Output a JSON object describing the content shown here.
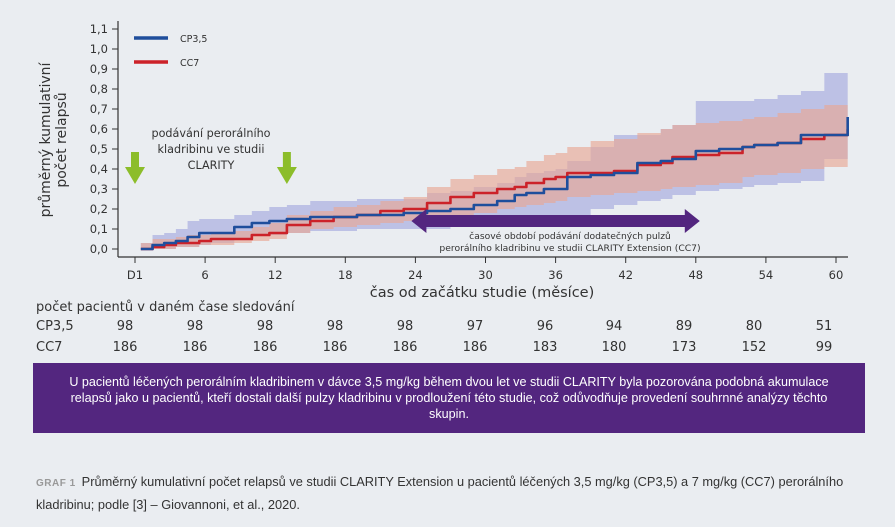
{
  "chart_data": {
    "type": "line",
    "title": "",
    "ylabel": "průměrný kumulativní počet relapsů",
    "xlabel": "čas od začátku studie (měsíce)",
    "ylim": [
      0,
      1.1
    ],
    "xlim": [
      0,
      61
    ],
    "y_ticks": [
      0.0,
      0.1,
      0.2,
      0.3,
      0.4,
      0.5,
      0.6,
      0.7,
      0.8,
      0.9,
      1.0,
      1.1
    ],
    "y_tick_labels": [
      "0,0",
      "0,1",
      "0,2",
      "0,3",
      "0,4",
      "0,5",
      "0,6",
      "0,7",
      "0,8",
      "0,9",
      "1,0",
      "1,1"
    ],
    "x_ticks": [
      0,
      6,
      12,
      18,
      24,
      30,
      36,
      42,
      48,
      54,
      60
    ],
    "x_tick_labels": [
      "D1",
      "6",
      "12",
      "18",
      "24",
      "30",
      "36",
      "42",
      "48",
      "54",
      "60"
    ],
    "legend": {
      "placement": "top-left",
      "entries": [
        "CP3,5",
        "CC7"
      ]
    },
    "series": [
      {
        "name": "CP3,5",
        "color": "#1f4e9c",
        "band_color": "#aeb1e0",
        "x": [
          0.5,
          1.5,
          2.5,
          3.5,
          4.5,
          5.5,
          6.5,
          7.5,
          8.5,
          10,
          11.5,
          13,
          15,
          17,
          19,
          21,
          23,
          25,
          27,
          29,
          31,
          32.5,
          33.5,
          35,
          36,
          37,
          39,
          41,
          43,
          45,
          46,
          48,
          50,
          52,
          53,
          55,
          57,
          59,
          61
        ],
        "values": [
          0.0,
          0.02,
          0.03,
          0.04,
          0.06,
          0.08,
          0.08,
          0.08,
          0.11,
          0.13,
          0.14,
          0.15,
          0.16,
          0.16,
          0.17,
          0.17,
          0.18,
          0.19,
          0.2,
          0.22,
          0.24,
          0.27,
          0.28,
          0.3,
          0.3,
          0.36,
          0.37,
          0.38,
          0.43,
          0.44,
          0.45,
          0.49,
          0.5,
          0.51,
          0.52,
          0.53,
          0.57,
          0.57,
          0.66
        ],
        "lower": [
          0.0,
          0.0,
          0.0,
          0.01,
          0.01,
          0.02,
          0.03,
          0.03,
          0.05,
          0.07,
          0.07,
          0.08,
          0.09,
          0.09,
          0.1,
          0.1,
          0.1,
          0.1,
          0.11,
          0.12,
          0.12,
          0.14,
          0.14,
          0.15,
          0.15,
          0.17,
          0.2,
          0.22,
          0.24,
          0.25,
          0.27,
          0.29,
          0.3,
          0.31,
          0.32,
          0.33,
          0.34,
          0.45,
          0.46
        ],
        "upper": [
          0.03,
          0.07,
          0.08,
          0.1,
          0.14,
          0.15,
          0.15,
          0.15,
          0.17,
          0.19,
          0.21,
          0.22,
          0.24,
          0.24,
          0.25,
          0.25,
          0.25,
          0.28,
          0.29,
          0.31,
          0.33,
          0.36,
          0.38,
          0.39,
          0.4,
          0.44,
          0.51,
          0.57,
          0.57,
          0.6,
          0.62,
          0.74,
          0.74,
          0.74,
          0.75,
          0.77,
          0.79,
          0.88,
          0.96
        ]
      },
      {
        "name": "CC7",
        "color": "#cc2229",
        "band_color": "#e8a895",
        "x": [
          0.5,
          1.5,
          2.5,
          3.5,
          4.5,
          5.5,
          6.5,
          7.5,
          8.5,
          10,
          11.5,
          13,
          15,
          17,
          19,
          21,
          23,
          25,
          27,
          29,
          31,
          32.5,
          33.5,
          35,
          36,
          37,
          39,
          41,
          43,
          45,
          46,
          48,
          50,
          52,
          53,
          55,
          57,
          59,
          61
        ],
        "values": [
          0.0,
          0.01,
          0.02,
          0.03,
          0.03,
          0.04,
          0.05,
          0.05,
          0.05,
          0.07,
          0.08,
          0.12,
          0.14,
          0.16,
          0.17,
          0.19,
          0.2,
          0.23,
          0.26,
          0.28,
          0.3,
          0.31,
          0.33,
          0.35,
          0.36,
          0.38,
          0.38,
          0.39,
          0.42,
          0.43,
          0.46,
          0.47,
          0.48,
          0.51,
          0.52,
          0.53,
          0.55,
          0.57,
          0.6
        ],
        "lower": [
          0.0,
          0.0,
          0.0,
          0.01,
          0.01,
          0.02,
          0.02,
          0.02,
          0.03,
          0.04,
          0.05,
          0.08,
          0.1,
          0.11,
          0.12,
          0.13,
          0.14,
          0.15,
          0.17,
          0.18,
          0.2,
          0.21,
          0.22,
          0.23,
          0.24,
          0.26,
          0.27,
          0.28,
          0.29,
          0.3,
          0.31,
          0.32,
          0.33,
          0.36,
          0.37,
          0.38,
          0.4,
          0.41,
          0.43
        ],
        "upper": [
          0.03,
          0.05,
          0.05,
          0.06,
          0.07,
          0.07,
          0.08,
          0.08,
          0.09,
          0.11,
          0.13,
          0.17,
          0.19,
          0.21,
          0.22,
          0.24,
          0.26,
          0.31,
          0.35,
          0.37,
          0.4,
          0.41,
          0.44,
          0.47,
          0.48,
          0.51,
          0.54,
          0.55,
          0.58,
          0.6,
          0.62,
          0.63,
          0.64,
          0.65,
          0.66,
          0.68,
          0.7,
          0.72,
          0.75
        ]
      }
    ],
    "annotations": [
      {
        "id": "clarity",
        "text_lines": [
          "podávání perorálního",
          "kladribinu ve studii",
          "CLARITY"
        ],
        "arrows_at_x": [
          0,
          13
        ],
        "arrow_color": "#8cbd2a"
      },
      {
        "id": "extension",
        "text_lines": [
          "časové období podávání dodatečných pulzů",
          "perorálního kladribinu ve studii CLARITY Extension (CC7)"
        ],
        "span_x": [
          24,
          48
        ],
        "arrow_color": "#53267f"
      }
    ]
  },
  "patients_table": {
    "header": "počet pacientů v daném čase sledování",
    "rows": [
      {
        "label": "CP3,5",
        "values": [
          "98",
          "98",
          "98",
          "98",
          "98",
          "97",
          "96",
          "94",
          "89",
          "80",
          "51"
        ]
      },
      {
        "label": "CC7",
        "values": [
          "186",
          "186",
          "186",
          "186",
          "186",
          "186",
          "183",
          "180",
          "173",
          "152",
          "99"
        ]
      }
    ]
  },
  "banner": {
    "text": "U pacientů léčených perorálním kladribinem v dávce 3,5 mg/kg během dvou let ve studii CLARITY byla pozorována podobná akumulace relapsů jako u pacientů, kteří dostali další pulzy kladribinu v prodloužení této studie, což odůvodňuje provedení souhrnné analýzy těchto skupin.",
    "background": "#53267f"
  },
  "caption": {
    "label": "GRAF 1",
    "text": "Průměrný kumulativní počet relapsů ve studii CLARITY Extension u pacientů léčených 3,5 mg/kg (CP3,5) a 7 mg/kg (CC7) perorálního kladribinu; podle [3] – Giovannoni, et al., 2020."
  }
}
